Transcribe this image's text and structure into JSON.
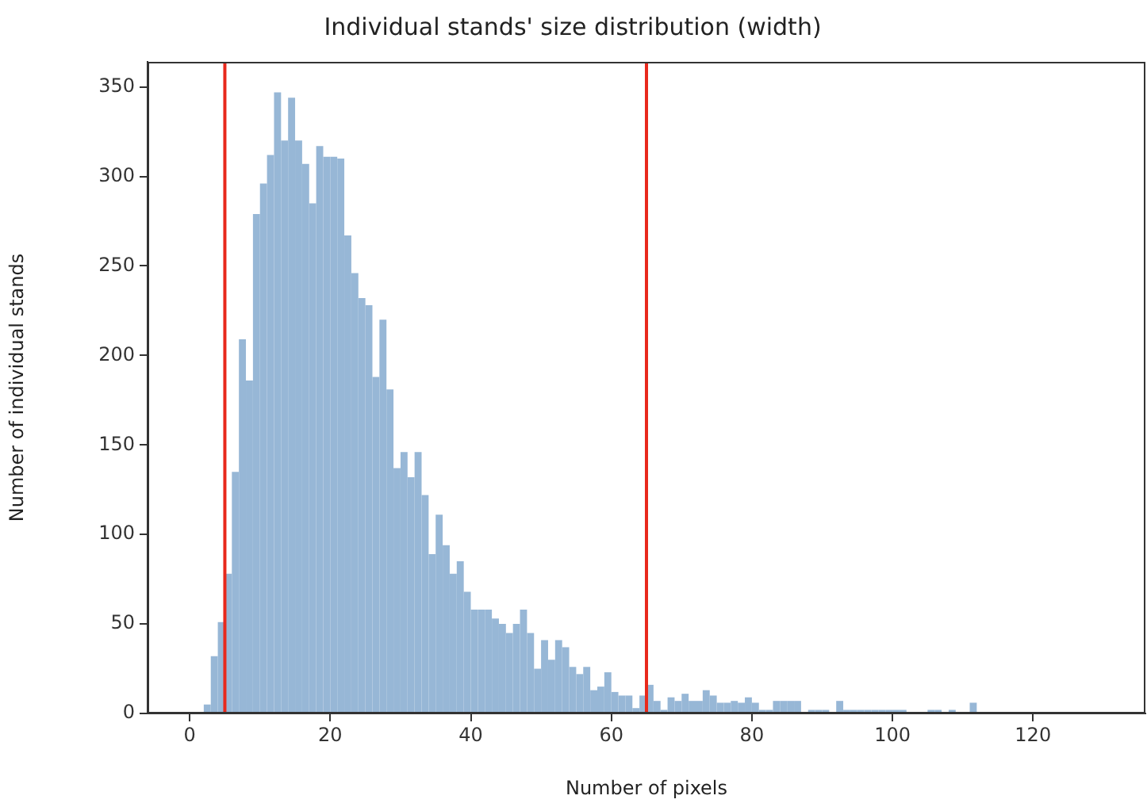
{
  "chart_data": {
    "type": "histogram",
    "title": "Individual stands' size distribution (width)",
    "xlabel": "Number of pixels",
    "ylabel": "Number of individual stands",
    "bins": [
      2,
      3,
      4,
      5,
      6,
      7,
      8,
      9,
      10,
      11,
      12,
      13,
      14,
      15,
      16,
      17,
      18,
      19,
      20,
      21,
      22,
      23,
      24,
      25,
      26,
      27,
      28,
      29,
      30,
      31,
      32,
      33,
      34,
      35,
      36,
      37,
      38,
      39,
      40,
      41,
      42,
      43,
      44,
      45,
      46,
      47,
      48,
      49,
      50,
      51,
      52,
      53,
      54,
      55,
      56,
      57,
      58,
      59,
      60,
      61,
      62,
      63,
      64,
      65,
      66,
      67,
      68,
      69,
      70,
      71,
      72,
      73,
      74,
      75,
      76,
      77,
      78,
      79,
      80,
      81,
      82,
      83,
      84,
      85,
      86,
      87,
      88,
      89,
      90,
      91,
      92,
      93,
      94,
      95,
      96,
      97,
      98,
      99,
      100,
      101,
      102,
      103,
      104,
      105,
      106,
      107,
      108,
      109,
      110,
      111,
      112
    ],
    "values": [
      5,
      32,
      51,
      78,
      135,
      209,
      186,
      279,
      296,
      312,
      347,
      320,
      344,
      320,
      307,
      285,
      317,
      311,
      311,
      310,
      267,
      246,
      232,
      228,
      188,
      220,
      181,
      137,
      146,
      132,
      146,
      122,
      89,
      111,
      94,
      78,
      85,
      68,
      58,
      58,
      58,
      53,
      50,
      45,
      50,
      58,
      45,
      25,
      41,
      30,
      41,
      37,
      26,
      22,
      26,
      13,
      15,
      23,
      12,
      10,
      10,
      3,
      10,
      16,
      7,
      2,
      9,
      7,
      11,
      7,
      7,
      13,
      10,
      6,
      6,
      7,
      6,
      9,
      6,
      2,
      2,
      7,
      7,
      7,
      7,
      0,
      2,
      2,
      2,
      0,
      7,
      2,
      2,
      2,
      2,
      2,
      2,
      2,
      2,
      2,
      0,
      0,
      0,
      2,
      2,
      0,
      2,
      0,
      0,
      6
    ],
    "color": "#97b7d6",
    "xlim": [
      -6,
      136
    ],
    "xticks": [
      0,
      20,
      40,
      60,
      80,
      100,
      120
    ],
    "ylim": [
      0,
      364
    ],
    "yticks": [
      0,
      50,
      100,
      150,
      200,
      250,
      300,
      350
    ],
    "ref_lines": [
      {
        "axis": "x",
        "value": 5,
        "color": "#e8291c"
      },
      {
        "axis": "x",
        "value": 65,
        "color": "#e8291c"
      }
    ],
    "grid": false,
    "legend": false
  }
}
